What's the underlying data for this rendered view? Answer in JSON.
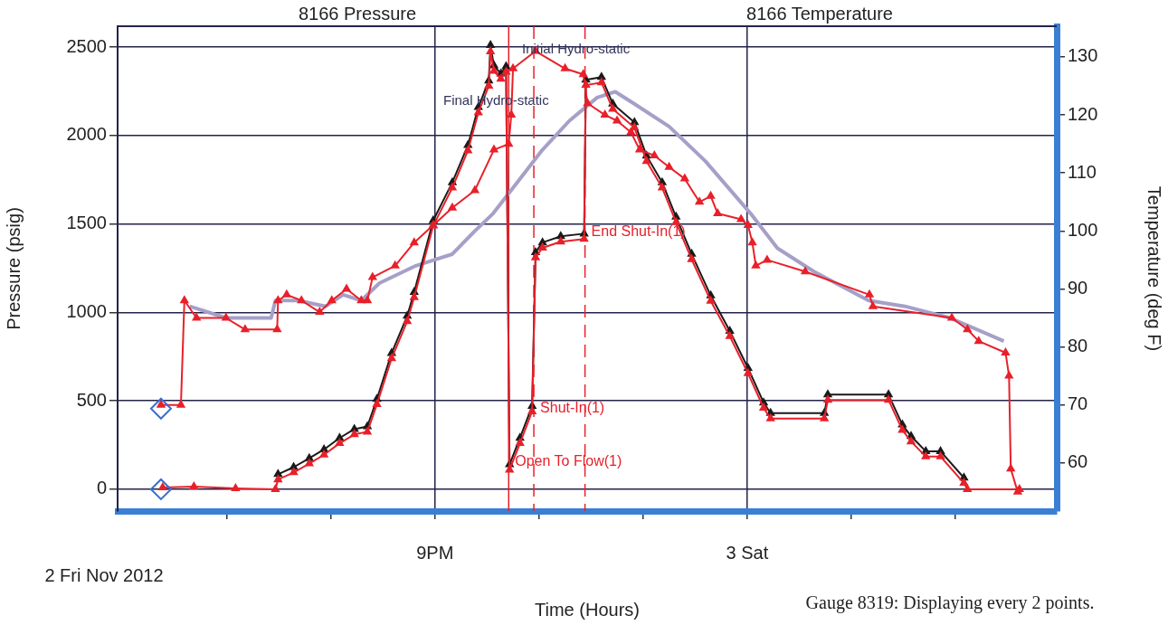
{
  "chart_data": {
    "type": "line",
    "xlabel": "Time (Hours)",
    "ylabel": "Pressure (psig)",
    "y2label": "Temperature (deg F)",
    "xlim": [
      "2012-11-02T14:54",
      "2012-11-03T08:57"
    ],
    "xticks": [
      {
        "value": "2012-11-02T17:00",
        "label": null
      },
      {
        "value": "2012-11-02T19:00",
        "label": null
      },
      {
        "value": "2012-11-02T21:00",
        "label": "9PM"
      },
      {
        "value": "2012-11-02T23:00",
        "label": null
      },
      {
        "value": "2012-11-03T01:00",
        "label": null
      },
      {
        "value": "2012-11-03T03:00",
        "label": "3 Sat"
      },
      {
        "value": "2012-11-03T05:00",
        "label": null
      },
      {
        "value": "2012-11-03T07:00",
        "label": null
      }
    ],
    "ylim": [
      -123,
      2618
    ],
    "yticks": [
      0,
      500,
      1000,
      1500,
      2000,
      2500
    ],
    "y2lim": [
      51.7,
      135.3
    ],
    "y2ticks": [
      60,
      70,
      80,
      90,
      100,
      110,
      120,
      130
    ],
    "grid": true,
    "legend": false,
    "series": [
      {
        "type": "scatter",
        "axis": "y",
        "marker": "diamond",
        "color": "#3a6fd0",
        "x": [
          "2012-11-02T15:44",
          "2012-11-02T15:44"
        ],
        "values": [
          456,
          0
        ]
      },
      {
        "axis": "y",
        "marker": "triangle",
        "color": "#e8202a",
        "x": [
          "2012-11-02T15:46",
          "2012-11-02T16:22",
          "2012-11-02T17:10",
          "2012-11-02T17:56",
          "2012-11-02T17:59",
          "2012-11-02T18:17",
          "2012-11-02T18:35",
          "2012-11-02T18:52",
          "2012-11-02T19:10",
          "2012-11-02T19:27",
          "2012-11-02T19:42",
          "2012-11-02T19:53",
          "2012-11-02T20:10",
          "2012-11-02T20:28",
          "2012-11-02T20:36",
          "2012-11-02T20:58",
          "2012-11-02T21:20",
          "2012-11-02T21:38",
          "2012-11-02T21:50",
          "2012-11-02T22:02",
          "2012-11-02T22:04",
          "2012-11-02T22:08",
          "2012-11-02T22:16",
          "2012-11-02T22:22",
          "2012-11-02T22:26",
          "2012-11-02T22:38",
          "2012-11-02T22:52",
          "2012-11-02T22:56",
          "2012-11-02T23:04",
          "2012-11-02T23:25",
          "2012-11-02T23:52",
          "2012-11-02T23:54",
          "2012-11-03T00:12",
          "2012-11-03T00:25",
          "2012-11-03T00:50",
          "2012-11-03T01:04",
          "2012-11-03T01:22",
          "2012-11-03T01:38",
          "2012-11-03T01:56",
          "2012-11-03T02:18",
          "2012-11-03T02:40",
          "2012-11-03T03:01",
          "2012-11-03T03:19",
          "2012-11-03T03:27",
          "2012-11-03T04:29",
          "2012-11-03T04:33",
          "2012-11-03T05:43",
          "2012-11-03T05:59",
          "2012-11-03T06:09",
          "2012-11-03T06:26",
          "2012-11-03T06:43",
          "2012-11-03T07:10",
          "2012-11-03T07:14",
          "2012-11-03T08:14"
        ],
        "values": [
          10,
          15,
          5,
          0,
          55,
          95,
          145,
          195,
          260,
          310,
          325,
          480,
          740,
          950,
          1085,
          1490,
          1705,
          1915,
          2130,
          2280,
          2475,
          2365,
          2320,
          2360,
          110,
          260,
          440,
          1310,
          1365,
          1400,
          1415,
          2285,
          2300,
          2150,
          2045,
          1855,
          1705,
          1510,
          1300,
          1065,
          865,
          655,
          460,
          400,
          400,
          505,
          505,
          335,
          270,
          185,
          185,
          35,
          0,
          0
        ]
      },
      {
        "axis": "y2",
        "marker": "triangle",
        "color": "#e8202a",
        "x": [
          "2012-11-02T15:44",
          "2012-11-02T16:07",
          "2012-11-02T16:11",
          "2012-11-02T16:25",
          "2012-11-02T16:59",
          "2012-11-02T17:21",
          "2012-11-02T17:58",
          "2012-11-02T17:59",
          "2012-11-02T18:09",
          "2012-11-02T18:26",
          "2012-11-02T18:47",
          "2012-11-02T19:01",
          "2012-11-02T19:18",
          "2012-11-02T19:35",
          "2012-11-02T19:42",
          "2012-11-02T19:48",
          "2012-11-02T20:14",
          "2012-11-02T20:36",
          "2012-11-02T20:58",
          "2012-11-02T21:20",
          "2012-11-02T21:46",
          "2012-11-02T22:08",
          "2012-11-02T22:25",
          "2012-11-02T22:28",
          "2012-11-02T22:30",
          "2012-11-02T22:56",
          "2012-11-02T23:30",
          "2012-11-02T23:51",
          "2012-11-02T23:56",
          "2012-11-03T00:16",
          "2012-11-03T00:30",
          "2012-11-03T00:46",
          "2012-11-03T00:56",
          "2012-11-03T01:13",
          "2012-11-03T01:30",
          "2012-11-03T01:48",
          "2012-11-03T02:05",
          "2012-11-03T02:18",
          "2012-11-03T02:26",
          "2012-11-03T02:53",
          "2012-11-03T03:01",
          "2012-11-03T03:06",
          "2012-11-03T03:10",
          "2012-11-03T03:23",
          "2012-11-03T04:07",
          "2012-11-03T05:21",
          "2012-11-03T05:25",
          "2012-11-03T06:56",
          "2012-11-03T07:14",
          "2012-11-03T07:27",
          "2012-11-03T07:58",
          "2012-11-03T08:02",
          "2012-11-03T08:04",
          "2012-11-03T08:12"
        ],
        "values": [
          70,
          70,
          88,
          85,
          85,
          83,
          83,
          88,
          89,
          88,
          86,
          88,
          90,
          88,
          88,
          92,
          94,
          98,
          101,
          104,
          107,
          114,
          115,
          120,
          128,
          131,
          128,
          127,
          122,
          120,
          119,
          117,
          114,
          113,
          111,
          109,
          105,
          106,
          103,
          102,
          101,
          98,
          94,
          95,
          93,
          89,
          87,
          85,
          83,
          81,
          79,
          75,
          59,
          55
        ]
      },
      {
        "axis": "y",
        "marker": "triangle",
        "color": "#1a1a1a",
        "x": [
          "2012-11-02T17:59",
          "2012-11-02T18:17",
          "2012-11-02T18:35",
          "2012-11-02T18:52",
          "2012-11-02T19:10",
          "2012-11-02T19:27",
          "2012-11-02T19:42",
          "2012-11-02T19:53",
          "2012-11-02T20:10",
          "2012-11-02T20:28",
          "2012-11-02T20:36",
          "2012-11-02T20:58",
          "2012-11-02T21:20",
          "2012-11-02T21:38",
          "2012-11-02T21:50",
          "2012-11-02T22:02",
          "2012-11-02T22:04",
          "2012-11-02T22:08",
          "2012-11-02T22:16",
          "2012-11-02T22:22",
          "2012-11-02T22:26",
          "2012-11-02T22:38",
          "2012-11-02T22:52",
          "2012-11-02T22:56",
          "2012-11-02T23:04",
          "2012-11-02T23:25",
          "2012-11-02T23:52",
          "2012-11-02T23:54",
          "2012-11-03T00:12",
          "2012-11-03T00:25",
          "2012-11-03T00:50",
          "2012-11-03T01:04",
          "2012-11-03T01:22",
          "2012-11-03T01:38",
          "2012-11-03T01:56",
          "2012-11-03T02:18",
          "2012-11-03T02:40",
          "2012-11-03T03:01",
          "2012-11-03T03:19",
          "2012-11-03T03:27",
          "2012-11-03T04:29",
          "2012-11-03T04:33",
          "2012-11-03T05:43",
          "2012-11-03T05:59",
          "2012-11-03T06:09",
          "2012-11-03T06:26",
          "2012-11-03T06:43",
          "2012-11-03T07:10"
        ],
        "values": [
          85,
          125,
          175,
          225,
          290,
          340,
          355,
          510,
          770,
          980,
          1115,
          1520,
          1735,
          1945,
          2160,
          2310,
          2510,
          2395,
          2350,
          2390,
          140,
          290,
          470,
          1340,
          1395,
          1430,
          1445,
          2315,
          2330,
          2180,
          2075,
          1885,
          1735,
          1540,
          1330,
          1095,
          895,
          685,
          490,
          430,
          430,
          535,
          535,
          365,
          300,
          215,
          215,
          65
        ]
      },
      {
        "axis": "y2",
        "marker": "none",
        "color": "#a6a0c8",
        "x": [
          "2012-11-02T16:17",
          "2012-11-02T16:59",
          "2012-11-02T17:51",
          "2012-11-02T17:56",
          "2012-11-02T18:22",
          "2012-11-02T18:54",
          "2012-11-02T19:14",
          "2012-11-02T19:35",
          "2012-11-02T19:56",
          "2012-11-02T20:38",
          "2012-11-02T20:59",
          "2012-11-02T21:20",
          "2012-11-02T21:46",
          "2012-11-02T22:07",
          "2012-11-02T22:33",
          "2012-11-02T23:04",
          "2012-11-02T23:35",
          "2012-11-03T00:07",
          "2012-11-03T00:28",
          "2012-11-03T00:49",
          "2012-11-03T01:30",
          "2012-11-03T02:12",
          "2012-11-03T03:04",
          "2012-11-03T03:35",
          "2012-11-03T04:17",
          "2012-11-03T05:20",
          "2012-11-03T06:02",
          "2012-11-03T06:54",
          "2012-11-03T07:56"
        ],
        "values": [
          87,
          85,
          85,
          88,
          88,
          87,
          89,
          88,
          91,
          94,
          95,
          96,
          100,
          103,
          108,
          114,
          119,
          123,
          124,
          122,
          118,
          112,
          103,
          97,
          93,
          88,
          87,
          85,
          81
        ]
      }
    ],
    "ref_lines": [
      {
        "axis": "x",
        "value": "2012-11-02T22:25",
        "label": "Open To Flow(1)",
        "color": "#e8202a",
        "line_style": "solid"
      },
      {
        "axis": "x",
        "value": "2012-11-02T22:54",
        "label": "Shut-In(1)",
        "color": "#e8202a",
        "line_style": "dashed"
      },
      {
        "axis": "x",
        "value": "2012-11-02T23:53",
        "label": "End Shut-In(1)",
        "color": "#e8202a",
        "line_style": "dashed"
      }
    ],
    "annotations": [
      "8166 Pressure",
      "8166 Temperature",
      "2 Fri Nov 2012",
      "Gauge 8319: Displaying every 2 points.",
      "Initial Hydro-static",
      "Final Hydro-static"
    ]
  }
}
